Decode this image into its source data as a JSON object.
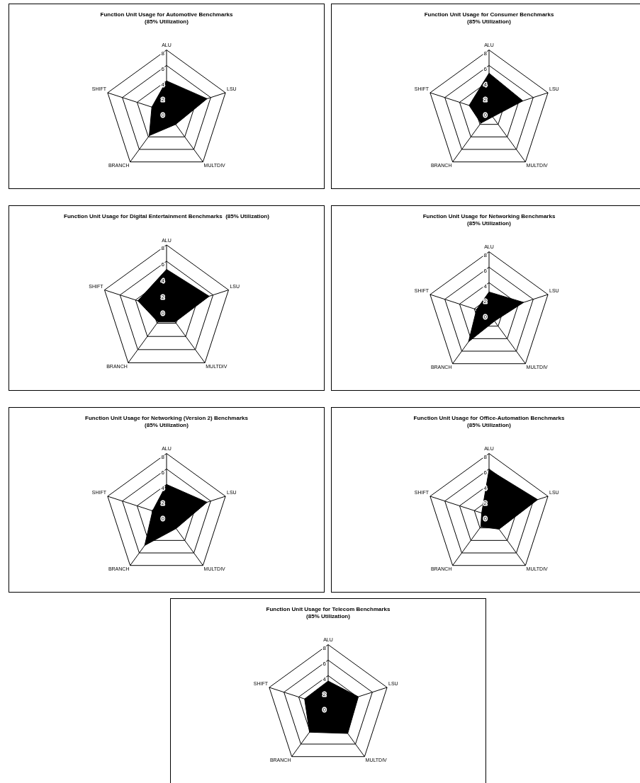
{
  "chart_data": [
    {
      "type": "radar",
      "title": "Function Unit Usage for Automotive Benchmarks",
      "subtitle": "(85% Utilization)",
      "categories": [
        "ALU",
        "LSU",
        "MULTDIV",
        "BRANCH",
        "SHIFT"
      ],
      "series": [
        {
          "color": "#000000",
          "values": [
            4,
            5.5,
            2,
            3.8,
            2
          ]
        }
      ],
      "ylim": [
        0,
        8
      ],
      "yticks": [
        0,
        2,
        4,
        6,
        8
      ],
      "grid": true,
      "legend": false,
      "marker": "none"
    },
    {
      "type": "radar",
      "title": "Function Unit Usage for Consumer Benchmarks",
      "subtitle": "(85% Utilization)",
      "categories": [
        "ALU",
        "LSU",
        "MULTDIV",
        "BRANCH",
        "SHIFT"
      ],
      "series": [
        {
          "color": "#000000",
          "values": [
            5,
            4.6,
            0.8,
            1.8,
            2.7
          ]
        }
      ],
      "ylim": [
        0,
        8
      ],
      "yticks": [
        0,
        2,
        4,
        6,
        8
      ],
      "grid": true,
      "legend": false,
      "marker": "none"
    },
    {
      "type": "radar",
      "title": "Function Unit Usage for Digital Entertainment Benchmarks  (85% Utilization)",
      "categories": [
        "ALU",
        "LSU",
        "MULTDIV",
        "BRANCH",
        "SHIFT"
      ],
      "series": [
        {
          "color": "#000000",
          "values": [
            5,
            5.5,
            1.8,
            1.8,
            3.7
          ]
        }
      ],
      "ylim": [
        0,
        8
      ],
      "yticks": [
        0,
        2,
        4,
        6,
        8
      ],
      "grid": true,
      "legend": false,
      "marker": "none"
    },
    {
      "type": "radar",
      "title": "Function Unit Usage for Networking Benchmarks",
      "subtitle": "(85% Utilization)",
      "categories": [
        "ALU",
        "LSU",
        "MULTDIV",
        "BRANCH",
        "SHIFT"
      ],
      "series": [
        {
          "color": "#000000",
          "values": [
            2.8,
            4.7,
            1.2,
            4.5,
            1.7
          ]
        }
      ],
      "ylim": [
        0,
        8
      ],
      "yticks": [
        0,
        2,
        4,
        6,
        8
      ],
      "grid": true,
      "legend": false,
      "marker": "none"
    },
    {
      "type": "radar",
      "title": "Function Unit Usage for Networking (Version 2) Benchmarks",
      "subtitle": "(85% Utilization)",
      "categories": [
        "ALU",
        "LSU",
        "MULTDIV",
        "BRANCH",
        "SHIFT"
      ],
      "series": [
        {
          "color": "#000000",
          "values": [
            4,
            5.5,
            2.1,
            4.8,
            1.9
          ]
        }
      ],
      "ylim": [
        0,
        8
      ],
      "yticks": [
        0,
        2,
        4,
        6,
        8
      ],
      "grid": true,
      "legend": false,
      "marker": "none"
    },
    {
      "type": "radar",
      "title": "Function Unit Usage for Office-Automation Benchmarks",
      "subtitle": "(85% Utilization)",
      "categories": [
        "ALU",
        "LSU",
        "MULTDIV",
        "BRANCH",
        "SHIFT"
      ],
      "series": [
        {
          "color": "#000000",
          "values": [
            5.9,
            6.6,
            2.2,
            1.8,
            1.0
          ]
        }
      ],
      "ylim": [
        0,
        8
      ],
      "yticks": [
        0,
        2,
        4,
        6,
        8
      ],
      "grid": true,
      "legend": false,
      "marker": "none"
    },
    {
      "type": "radar",
      "title": "Function Unit Usage for Telecom Benchmarks",
      "subtitle": "(85% Utilization)",
      "categories": [
        "ALU",
        "LSU",
        "MULTDIV",
        "BRANCH",
        "SHIFT"
      ],
      "series": [
        {
          "color": "#000000",
          "values": [
            3.3,
            4.1,
            4.3,
            4.1,
            3.2
          ]
        }
      ],
      "ylim": [
        0,
        8
      ],
      "yticks": [
        0,
        2,
        4,
        6,
        8
      ],
      "grid": true,
      "legend": false,
      "marker": "none"
    }
  ]
}
